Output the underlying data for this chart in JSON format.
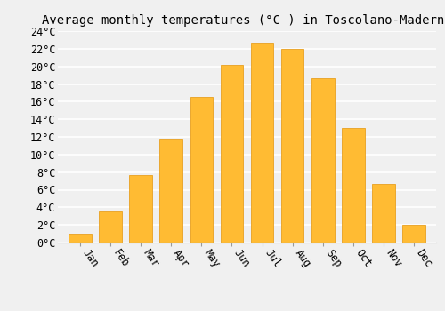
{
  "title": "Average monthly temperatures (°C ) in Toscolano-Maderno",
  "months": [
    "Jan",
    "Feb",
    "Mar",
    "Apr",
    "May",
    "Jun",
    "Jul",
    "Aug",
    "Sep",
    "Oct",
    "Nov",
    "Dec"
  ],
  "values": [
    1.0,
    3.5,
    7.7,
    11.8,
    16.5,
    20.2,
    22.7,
    22.0,
    18.7,
    13.0,
    6.7,
    2.0
  ],
  "bar_color": "#FFBB33",
  "bar_edge_color": "#E8A020",
  "ylim": [
    0,
    24
  ],
  "yticks": [
    0,
    2,
    4,
    6,
    8,
    10,
    12,
    14,
    16,
    18,
    20,
    22,
    24
  ],
  "ytick_labels": [
    "0°C",
    "2°C",
    "4°C",
    "6°C",
    "8°C",
    "10°C",
    "12°C",
    "14°C",
    "16°C",
    "18°C",
    "20°C",
    "22°C",
    "24°C"
  ],
  "background_color": "#f0f0f0",
  "grid_color": "#ffffff",
  "title_fontsize": 10,
  "tick_fontsize": 8.5,
  "bar_width": 0.75
}
